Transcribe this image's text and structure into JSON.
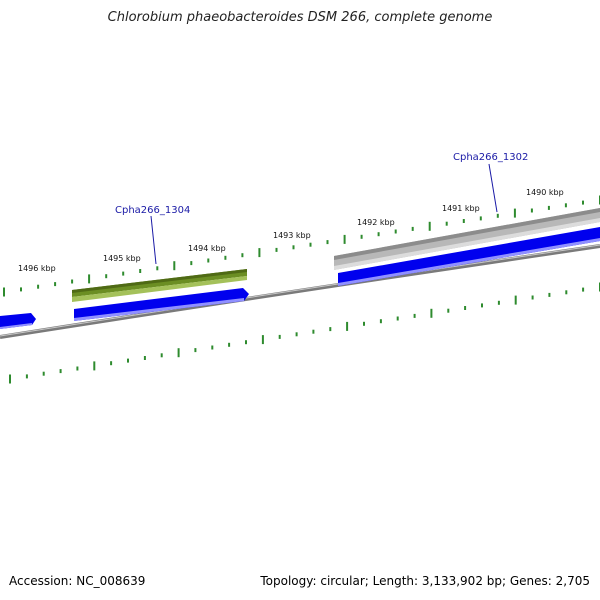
{
  "title": "Chlorobium phaeobacteroides DSM 266, complete genome",
  "footer": {
    "accession": "Accession: NC_008639",
    "summary": "Topology: circular; Length: 3,133,902 bp; Genes: 2,705"
  },
  "ruler": {
    "unit": "kbp",
    "labels": [
      "1496 kbp",
      "1495 kbp",
      "1494 kbp",
      "1493 kbp",
      "1492 kbp",
      "1491 kbp",
      "1490 kbp"
    ]
  },
  "gene_labels": [
    "Cpha266_1304",
    "Cpha266_1302"
  ],
  "colors": {
    "title": "#222222",
    "tick": "#2e8b2e",
    "backbone": "#7a7a7a",
    "cds_forward": "#0000ee",
    "highlight_gene": "#6b8e23",
    "grey_gene": "#b8b8b8",
    "label_line": "#1a1aa6"
  }
}
